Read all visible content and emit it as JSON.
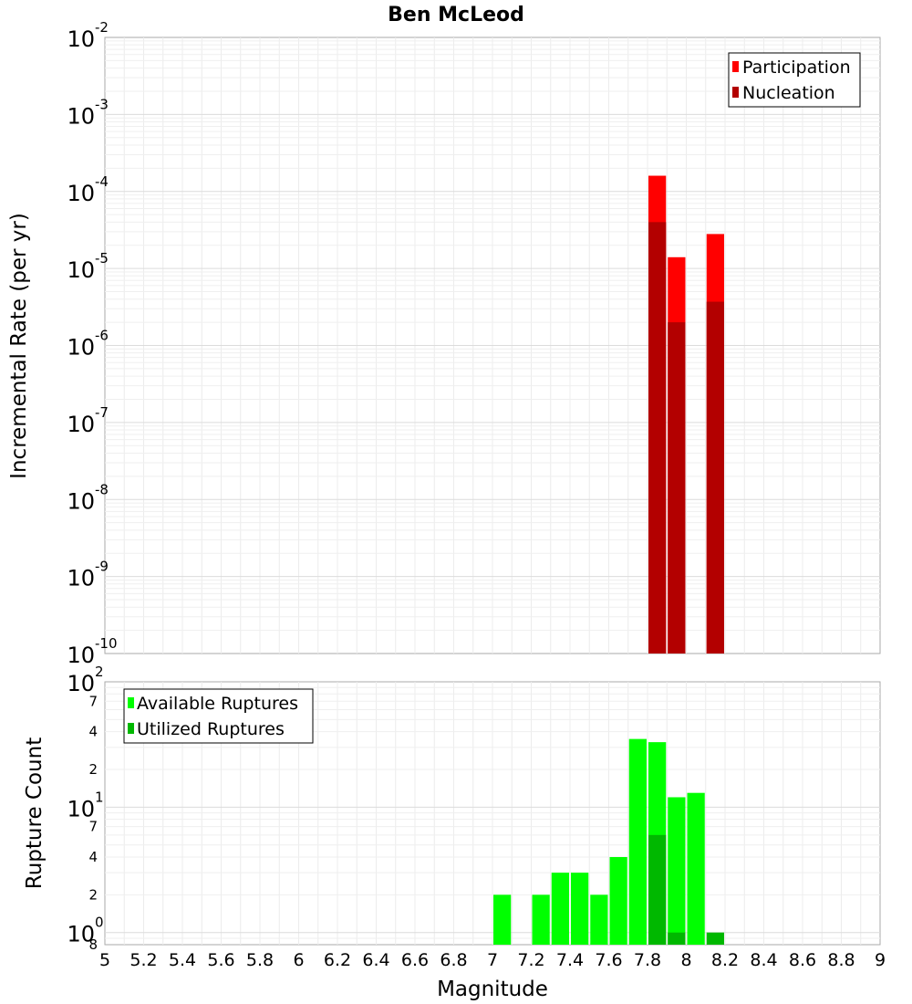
{
  "chart_data": {
    "title": "Ben McLeod",
    "xlabel": "Magnitude",
    "xlim": [
      5,
      9
    ],
    "xticks": [
      "5",
      "5.2",
      "5.4",
      "5.6",
      "5.8",
      "6",
      "6.2",
      "6.4",
      "6.6",
      "6.8",
      "7",
      "7.2",
      "7.4",
      "7.6",
      "7.8",
      "8",
      "8.2",
      "8.4",
      "8.6",
      "8.8",
      "9"
    ],
    "bin_width": 0.1,
    "panels": [
      {
        "type": "bar",
        "scale": "log",
        "ylabel": "Incremental Rate (per yr)",
        "ylim": [
          1e-10,
          0.01
        ],
        "yticks": [
          {
            "base": "10",
            "exp": "-2",
            "value": 0.01
          },
          {
            "base": "10",
            "exp": "-3",
            "value": 0.001
          },
          {
            "base": "10",
            "exp": "-4",
            "value": 0.0001
          },
          {
            "base": "10",
            "exp": "-5",
            "value": 1e-05
          },
          {
            "base": "10",
            "exp": "-6",
            "value": 1e-06
          },
          {
            "base": "10",
            "exp": "-7",
            "value": 1e-07
          },
          {
            "base": "10",
            "exp": "-8",
            "value": 1e-08
          },
          {
            "base": "10",
            "exp": "-9",
            "value": 1e-09
          },
          {
            "base": "10",
            "exp": "-10",
            "value": 1e-10
          }
        ],
        "legend": {
          "position": "top-right",
          "entries": [
            "Participation",
            "Nucleation"
          ]
        },
        "series": [
          {
            "name": "Participation",
            "color": "#ff0000",
            "x": [
              7.85,
              7.95,
              8.15
            ],
            "values": [
              0.00016,
              1.4e-05,
              2.8e-05
            ]
          },
          {
            "name": "Nucleation",
            "color": "#b30000",
            "x": [
              7.85,
              7.95,
              8.15
            ],
            "values": [
              4e-05,
              2e-06,
              3.7e-06
            ]
          }
        ]
      },
      {
        "type": "bar",
        "scale": "log",
        "ylabel": "Rupture Count",
        "ylim": [
          0.8,
          100
        ],
        "yticks": [
          {
            "base": "10",
            "exp": "2",
            "value": 100
          },
          {
            "base": "10",
            "exp": "1",
            "value": 10
          },
          {
            "base": "10",
            "exp": "0",
            "value": 1
          }
        ],
        "yminor": [
          {
            "label": "7",
            "value": 70
          },
          {
            "label": "4",
            "value": 40
          },
          {
            "label": "2",
            "value": 20
          },
          {
            "label": "7",
            "value": 7
          },
          {
            "label": "4",
            "value": 4
          },
          {
            "label": "2",
            "value": 2
          },
          {
            "label": "8",
            "value": 0.8
          }
        ],
        "legend": {
          "position": "top-left",
          "entries": [
            "Available Ruptures",
            "Utilized Ruptures"
          ]
        },
        "series": [
          {
            "name": "Available Ruptures",
            "color": "#00ff00",
            "x": [
              7.05,
              7.25,
              7.35,
              7.45,
              7.55,
              7.65,
              7.75,
              7.85,
              7.95,
              8.05
            ],
            "values": [
              2,
              2,
              3,
              3,
              2,
              4,
              35,
              33,
              12,
              13
            ]
          },
          {
            "name": "Utilized Ruptures",
            "color": "#00b800",
            "x": [
              7.85,
              7.95,
              8.15
            ],
            "values": [
              6,
              1,
              1
            ]
          }
        ]
      }
    ]
  }
}
